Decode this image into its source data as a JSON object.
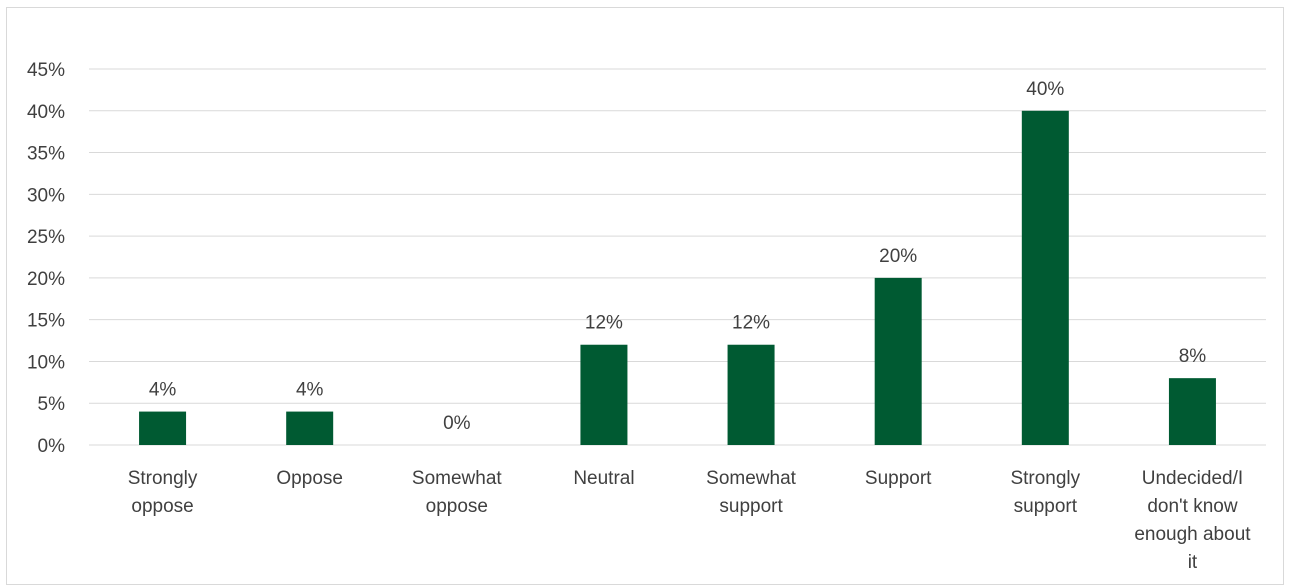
{
  "chart_data": {
    "type": "bar",
    "title": "",
    "xlabel": "",
    "ylabel": "",
    "categories": [
      [
        "Strongly",
        "oppose"
      ],
      [
        "Oppose"
      ],
      [
        "Somewhat",
        "oppose"
      ],
      [
        "Neutral"
      ],
      [
        "Somewhat",
        "support"
      ],
      [
        "Support"
      ],
      [
        "Strongly",
        "support"
      ],
      [
        "Undecided/I",
        "don't know",
        "enough about",
        "it"
      ]
    ],
    "values": [
      4,
      4,
      0,
      12,
      12,
      20,
      40,
      8
    ],
    "data_labels": [
      "4%",
      "4%",
      "0%",
      "12%",
      "12%",
      "20%",
      "40%",
      "8%"
    ],
    "ylim": [
      0,
      45
    ],
    "yticks": [
      0,
      5,
      10,
      15,
      20,
      25,
      30,
      35,
      40,
      45
    ],
    "ytick_labels": [
      "0%",
      "5%",
      "10%",
      "15%",
      "20%",
      "25%",
      "30%",
      "35%",
      "40%",
      "45%"
    ],
    "grid": true,
    "legend": "none",
    "bar_color": "#005a32",
    "grid_color": "#d9d9d9",
    "text_color": "#404040"
  }
}
